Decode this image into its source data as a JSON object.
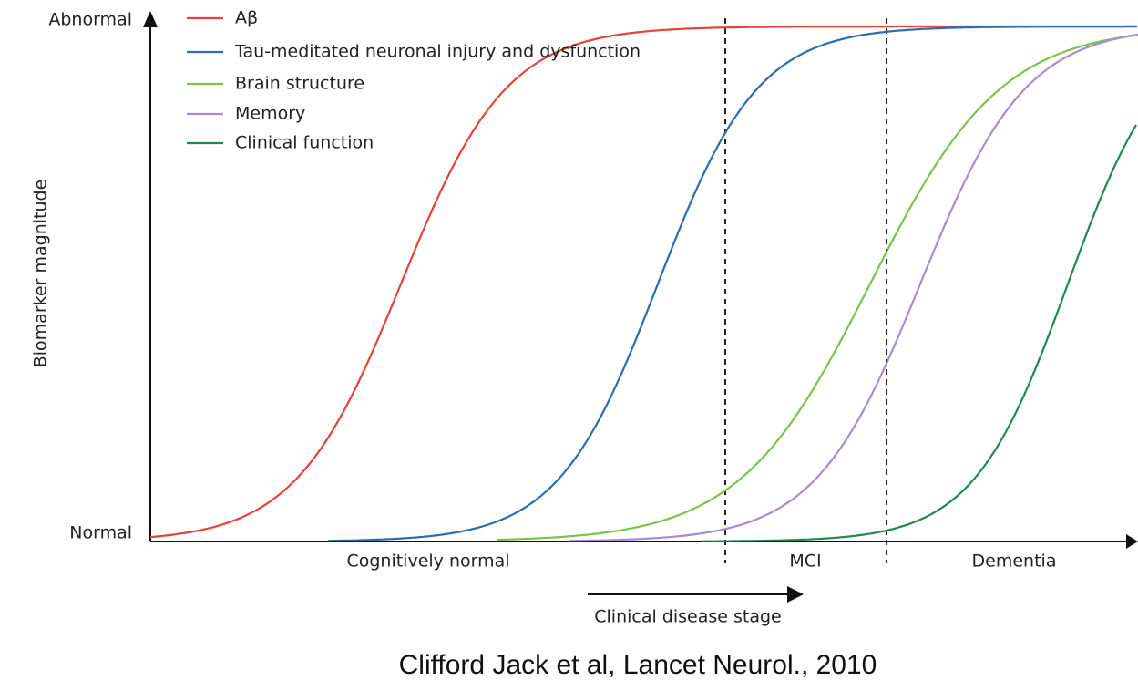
{
  "axis": {
    "y_label": "Biomarker magnitude",
    "y_top": "Abnormal",
    "y_bottom": "Normal"
  },
  "legend": [
    {
      "name": "Aβ",
      "color": "#e8413a"
    },
    {
      "name": "Tau-meditated neuronal injury and dysfunction",
      "color": "#2a6db5"
    },
    {
      "name": "Brain structure",
      "color": "#7dc24b"
    },
    {
      "name": "Memory",
      "color": "#a98bd0"
    },
    {
      "name": "Clinical function",
      "color": "#1f8a4f"
    }
  ],
  "stages": [
    "Cognitively normal",
    "MCI",
    "Dementia"
  ],
  "stage_arrow_label": "Clinical disease stage",
  "citation": "Clifford Jack et al, Lancet Neurol., 2010"
}
